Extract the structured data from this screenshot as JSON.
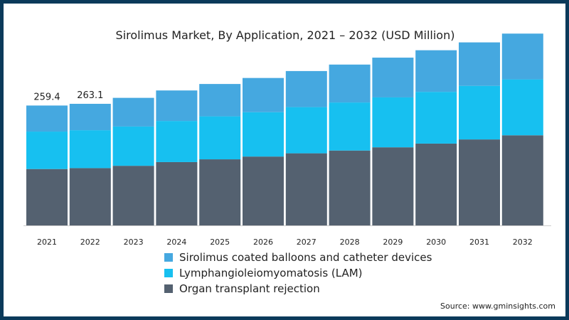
{
  "chart_data": {
    "type": "bar",
    "stacked": true,
    "title": "Sirolimus Market, By Application, 2021 – 2032 (USD Million)",
    "xlabel": "",
    "ylabel": "",
    "categories": [
      "2021",
      "2022",
      "2023",
      "2024",
      "2025",
      "2026",
      "2027",
      "2028",
      "2029",
      "2030",
      "2031",
      "2032"
    ],
    "series": [
      {
        "name": "Organ transplant rejection",
        "color": "#546170",
        "values": [
          122,
          124,
          129,
          137,
          143,
          149,
          156,
          162,
          169,
          177,
          186,
          195
        ]
      },
      {
        "name": "Lymphangioleiomyomatosis (LAM)",
        "color": "#17c0f0",
        "values": [
          81,
          82,
          85,
          89,
          93,
          96,
          100,
          104,
          108,
          112,
          116,
          121
        ]
      },
      {
        "name": "Sirolimus coated balloons and catheter devices",
        "color": "#45a8e0",
        "values": [
          56.4,
          57.1,
          62,
          66,
          70,
          74,
          78,
          82,
          86,
          90,
          94,
          99
        ]
      }
    ],
    "data_labels": [
      {
        "category": "2021",
        "text": "259.4"
      },
      {
        "category": "2022",
        "text": "263.1"
      }
    ],
    "ylim": [
      0,
      480
    ],
    "grid": false,
    "legend_placement": "bottom"
  },
  "legend": [
    {
      "label": "Sirolimus coated balloons and catheter devices",
      "color": "#45a8e0"
    },
    {
      "label": "Lymphangioleiomyomatosis (LAM)",
      "color": "#17c0f0"
    },
    {
      "label": "Organ transplant rejection",
      "color": "#546170"
    }
  ],
  "source": "Source: www.gminsights.com"
}
